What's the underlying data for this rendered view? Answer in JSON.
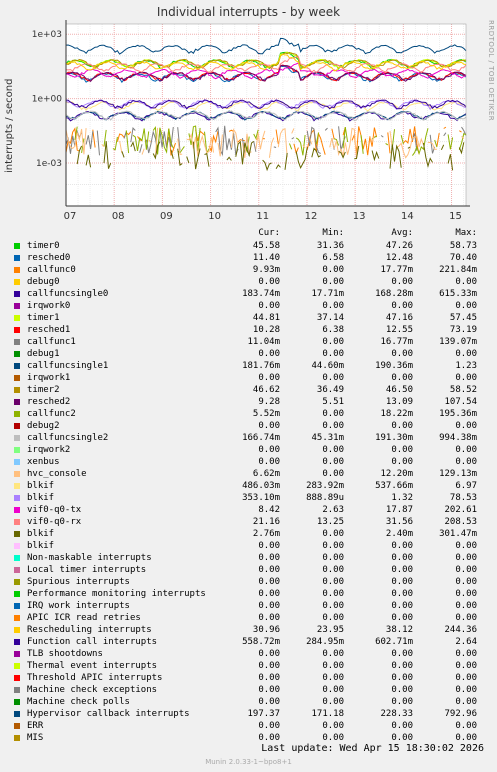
{
  "title": "Individual interrupts - by week",
  "side_label": "RRDTOOL / TOBI OETIKER",
  "footer": "Last update:  Wed Apr 15 18:30:02 2026",
  "munin": "Munin 2.0.33-1~bpo8+1",
  "headers": {
    "cur": "Cur:",
    "min": "Min:",
    "avg": "Avg:",
    "max": "Max:"
  },
  "chart_data": {
    "type": "line",
    "title": "Individual interrupts - by week",
    "ylabel": "interrupts / second",
    "yscale": "log",
    "ylim": [
      1e-05,
      3000
    ],
    "yticks": [
      {
        "v": 1000,
        "label": "1e+03"
      },
      {
        "v": 1,
        "label": "1e+00"
      },
      {
        "v": 0.001,
        "label": "1e-03"
      }
    ],
    "xticks": [
      "07",
      "08",
      "09",
      "10",
      "11",
      "12",
      "13",
      "14",
      "15"
    ],
    "series": [
      {
        "name": "timer0",
        "color": "#00cc00",
        "cur": "45.58",
        "min": "31.36",
        "avg": "47.26",
        "max": "58.73",
        "base": 45
      },
      {
        "name": "resched0",
        "color": "#0066b3",
        "cur": "11.40",
        "min": "6.58",
        "avg": "12.48",
        "max": "70.40",
        "base": 11
      },
      {
        "name": "callfunc0",
        "color": "#ff8000",
        "cur": "9.93m",
        "min": "0.00",
        "avg": "17.77m",
        "max": "221.84m",
        "base": 0.015,
        "sparse": true
      },
      {
        "name": "debug0",
        "color": "#ffcc00",
        "cur": "0.00",
        "min": "0.00",
        "avg": "0.00",
        "max": "0.00",
        "base": 0
      },
      {
        "name": "callfuncsingle0",
        "color": "#330099",
        "cur": "183.74m",
        "min": "17.71m",
        "avg": "168.28m",
        "max": "615.33m",
        "base": 0.17
      },
      {
        "name": "irqwork0",
        "color": "#990099",
        "cur": "0.00",
        "min": "0.00",
        "avg": "0.00",
        "max": "0.00",
        "base": 0
      },
      {
        "name": "timer1",
        "color": "#ccff00",
        "cur": "44.81",
        "min": "37.14",
        "avg": "47.16",
        "max": "57.45",
        "base": 46
      },
      {
        "name": "resched1",
        "color": "#ff0000",
        "cur": "10.28",
        "min": "6.38",
        "avg": "12.55",
        "max": "73.19",
        "base": 12
      },
      {
        "name": "callfunc1",
        "color": "#808080",
        "cur": "11.04m",
        "min": "0.00",
        "avg": "16.77m",
        "max": "139.07m",
        "base": 0.015,
        "sparse": true
      },
      {
        "name": "debug1",
        "color": "#008f00",
        "cur": "0.00",
        "min": "0.00",
        "avg": "0.00",
        "max": "0.00",
        "base": 0
      },
      {
        "name": "callfuncsingle1",
        "color": "#00487d",
        "cur": "181.76m",
        "min": "44.60m",
        "avg": "190.36m",
        "max": "1.23",
        "base": 0.18
      },
      {
        "name": "irqwork1",
        "color": "#b35a00",
        "cur": "0.00",
        "min": "0.00",
        "avg": "0.00",
        "max": "0.00",
        "base": 0
      },
      {
        "name": "timer2",
        "color": "#b38f00",
        "cur": "46.62",
        "min": "36.49",
        "avg": "46.50",
        "max": "58.52",
        "base": 46
      },
      {
        "name": "resched2",
        "color": "#6b006b",
        "cur": "9.28",
        "min": "5.51",
        "avg": "13.09",
        "max": "107.54",
        "base": 12
      },
      {
        "name": "callfunc2",
        "color": "#8fb300",
        "cur": "5.52m",
        "min": "0.00",
        "avg": "18.22m",
        "max": "195.36m",
        "base": 0.015,
        "sparse": true
      },
      {
        "name": "debug2",
        "color": "#b30000",
        "cur": "0.00",
        "min": "0.00",
        "avg": "0.00",
        "max": "0.00",
        "base": 0
      },
      {
        "name": "callfuncsingle2",
        "color": "#bebebe",
        "cur": "166.74m",
        "min": "45.31m",
        "avg": "191.30m",
        "max": "994.38m",
        "base": 0.18
      },
      {
        "name": "irqwork2",
        "color": "#80ff80",
        "cur": "0.00",
        "min": "0.00",
        "avg": "0.00",
        "max": "0.00",
        "base": 0
      },
      {
        "name": "xenbus",
        "color": "#80c9ff",
        "cur": "0.00",
        "min": "0.00",
        "avg": "0.00",
        "max": "0.00",
        "base": 0
      },
      {
        "name": "hvc_console",
        "color": "#ffc080",
        "cur": "6.62m",
        "min": "0.00",
        "avg": "12.20m",
        "max": "129.13m",
        "base": 0.012,
        "sparse": true
      },
      {
        "name": "blkif",
        "color": "#ffe680",
        "cur": "486.03m",
        "min": "283.92m",
        "avg": "537.66m",
        "max": "6.97",
        "base": 0.5
      },
      {
        "name": "blkif",
        "color": "#aa80ff",
        "cur": "353.10m",
        "min": "888.89u",
        "avg": "1.32",
        "max": "78.53",
        "base": 0.6
      },
      {
        "name": "vif0-q0-tx",
        "color": "#ee00cc",
        "cur": "8.42",
        "min": "2.63",
        "avg": "17.87",
        "max": "202.61",
        "base": 16
      },
      {
        "name": "vif0-q0-rx",
        "color": "#ff8080",
        "cur": "21.16",
        "min": "13.25",
        "avg": "31.56",
        "max": "208.53",
        "base": 30
      },
      {
        "name": "blkif",
        "color": "#666600",
        "cur": "2.76m",
        "min": "0.00",
        "avg": "2.40m",
        "max": "301.47m",
        "base": 0.003,
        "sparse": true
      },
      {
        "name": "blkif",
        "color": "#ffbfff",
        "cur": "0.00",
        "min": "0.00",
        "avg": "0.00",
        "max": "0.00",
        "base": 0
      },
      {
        "name": "Non-maskable interrupts",
        "color": "#00ffcc",
        "cur": "0.00",
        "min": "0.00",
        "avg": "0.00",
        "max": "0.00",
        "base": 0
      },
      {
        "name": "Local timer interrupts",
        "color": "#cc6699",
        "cur": "0.00",
        "min": "0.00",
        "avg": "0.00",
        "max": "0.00",
        "base": 0
      },
      {
        "name": "Spurious interrupts",
        "color": "#999900",
        "cur": "0.00",
        "min": "0.00",
        "avg": "0.00",
        "max": "0.00",
        "base": 0
      },
      {
        "name": "Performance monitoring interrupts",
        "color": "#00cc00",
        "cur": "0.00",
        "min": "0.00",
        "avg": "0.00",
        "max": "0.00",
        "base": 0
      },
      {
        "name": "IRQ work interrupts",
        "color": "#0066b3",
        "cur": "0.00",
        "min": "0.00",
        "avg": "0.00",
        "max": "0.00",
        "base": 0
      },
      {
        "name": "APIC ICR read retries",
        "color": "#ff8000",
        "cur": "0.00",
        "min": "0.00",
        "avg": "0.00",
        "max": "0.00",
        "base": 0
      },
      {
        "name": "Rescheduling interrupts",
        "color": "#ffcc00",
        "cur": "30.96",
        "min": "23.95",
        "avg": "38.12",
        "max": "244.36",
        "base": 37
      },
      {
        "name": "Function call interrupts",
        "color": "#330099",
        "cur": "558.72m",
        "min": "284.95m",
        "avg": "602.71m",
        "max": "2.64",
        "base": 0.6
      },
      {
        "name": "TLB shootdowns",
        "color": "#990099",
        "cur": "0.00",
        "min": "0.00",
        "avg": "0.00",
        "max": "0.00",
        "base": 0
      },
      {
        "name": "Thermal event interrupts",
        "color": "#ccff00",
        "cur": "0.00",
        "min": "0.00",
        "avg": "0.00",
        "max": "0.00",
        "base": 0
      },
      {
        "name": "Threshold APIC interrupts",
        "color": "#ff0000",
        "cur": "0.00",
        "min": "0.00",
        "avg": "0.00",
        "max": "0.00",
        "base": 0
      },
      {
        "name": "Machine check exceptions",
        "color": "#808080",
        "cur": "0.00",
        "min": "0.00",
        "avg": "0.00",
        "max": "0.00",
        "base": 0
      },
      {
        "name": "Machine check polls",
        "color": "#008f00",
        "cur": "0.00",
        "min": "0.00",
        "avg": "0.00",
        "max": "0.00",
        "base": 0
      },
      {
        "name": "Hypervisor callback interrupts",
        "color": "#00487d",
        "cur": "197.37",
        "min": "171.18",
        "avg": "228.33",
        "max": "792.96",
        "base": 220
      },
      {
        "name": "ERR",
        "color": "#b35a00",
        "cur": "0.00",
        "min": "0.00",
        "avg": "0.00",
        "max": "0.00",
        "base": 0
      },
      {
        "name": "MIS",
        "color": "#b38f00",
        "cur": "0.00",
        "min": "0.00",
        "avg": "0.00",
        "max": "0.00",
        "base": 0
      }
    ]
  }
}
